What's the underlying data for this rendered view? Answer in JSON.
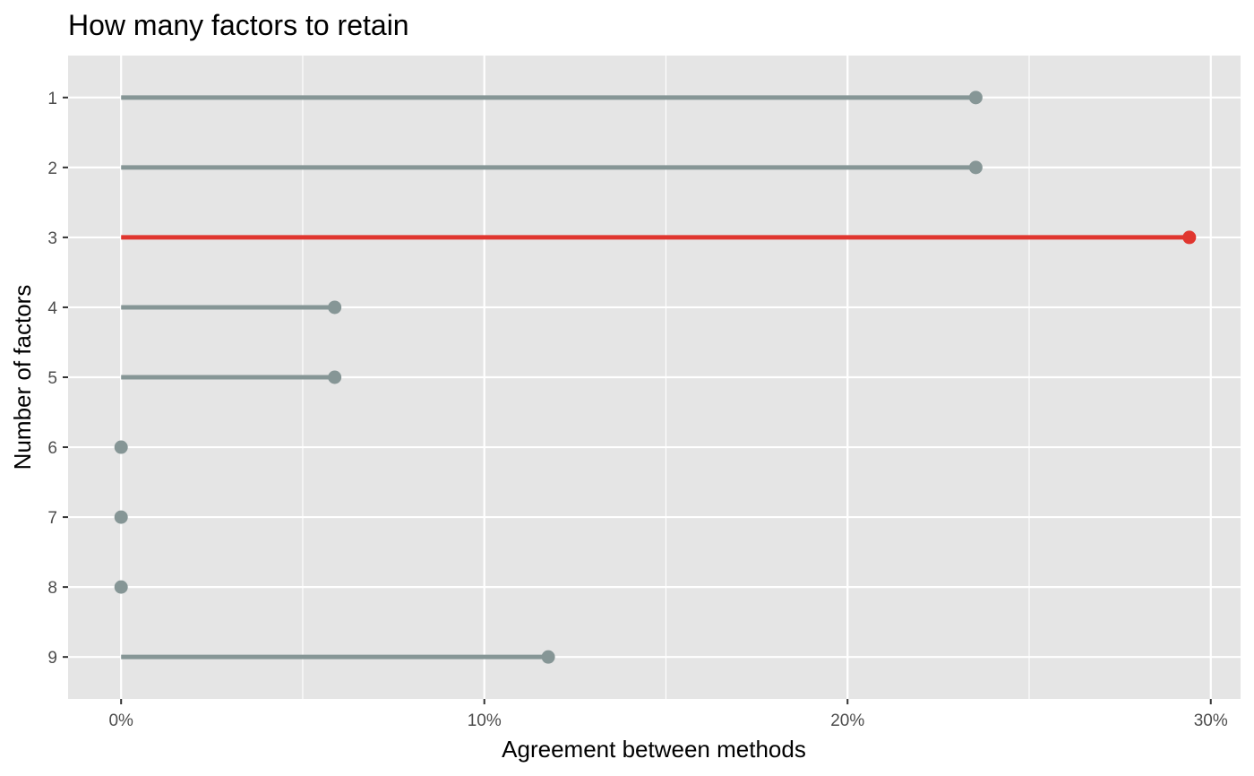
{
  "chart_data": {
    "type": "lollipop",
    "title": "How many factors to retain",
    "xlabel": "Agreement between methods",
    "ylabel": "Number of factors",
    "categories": [
      "1",
      "2",
      "3",
      "4",
      "5",
      "6",
      "7",
      "8",
      "9"
    ],
    "values": [
      0.2353,
      0.2353,
      0.2941,
      0.0588,
      0.0588,
      0.0,
      0.0,
      0.0,
      0.1176
    ],
    "highlight_category": "3",
    "xlim": [
      -0.0146,
      0.3082
    ],
    "x_ticks": [
      0,
      0.1,
      0.2,
      0.3
    ],
    "x_tick_labels": [
      "0%",
      "10%",
      "20%",
      "30%"
    ],
    "grid": true,
    "colors": {
      "panel_background": "#e5e5e5",
      "grid": "#ffffff",
      "default_series": "#869696",
      "highlight_series": "#e0362f"
    }
  }
}
